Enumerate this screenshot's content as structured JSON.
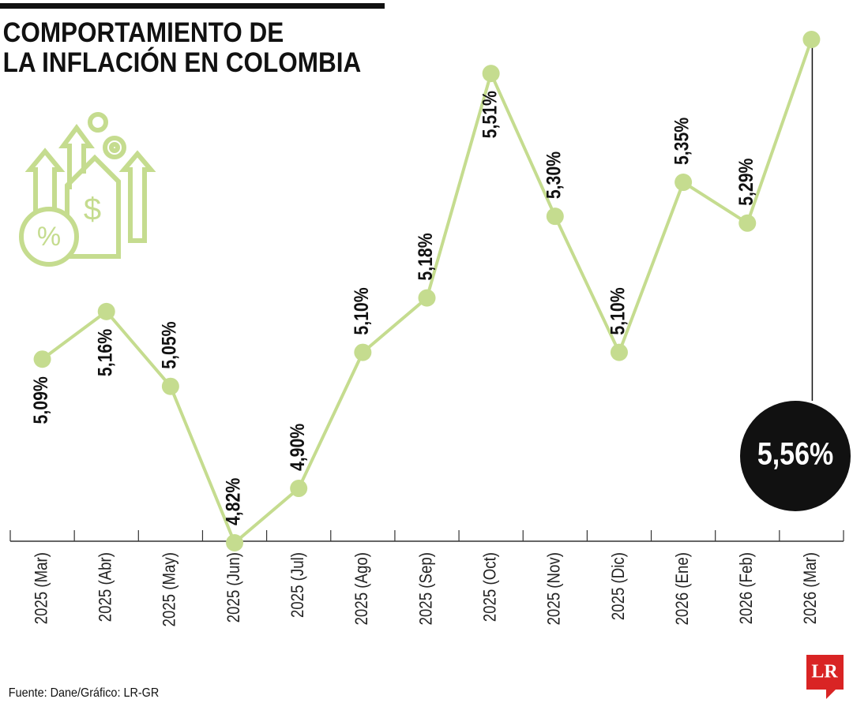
{
  "chart_data": {
    "type": "line",
    "title": [
      "COMPORTAMIENTO DE",
      "LA INFLACIÓN EN COLOMBIA"
    ],
    "categories": [
      "2025 (Mar)",
      "2025 (Abr)",
      "2025 (May)",
      "2025 (Jun)",
      "2025 (Jul)",
      "2025 (Ago)",
      "2025 (Sep)",
      "2025 (Oct)",
      "2025 (Nov)",
      "2025 (Dic)",
      "2026 (Ene)",
      "2026 (Feb)",
      "2026 (Mar)"
    ],
    "values": [
      5.09,
      5.16,
      5.05,
      4.82,
      4.9,
      5.1,
      5.18,
      5.51,
      5.3,
      5.1,
      5.35,
      5.29,
      5.56
    ],
    "value_labels": [
      "5,09%",
      "5,16%",
      "5,05%",
      "4,82%",
      "4,90%",
      "5,10%",
      "5,18%",
      "5,51%",
      "5,30%",
      "5,10%",
      "5,35%",
      "5,29%",
      "5,56%"
    ],
    "color": "#c5dc8f",
    "source": "Fuente: Dane/Gráfico: LR-GR",
    "logo": "LR"
  }
}
